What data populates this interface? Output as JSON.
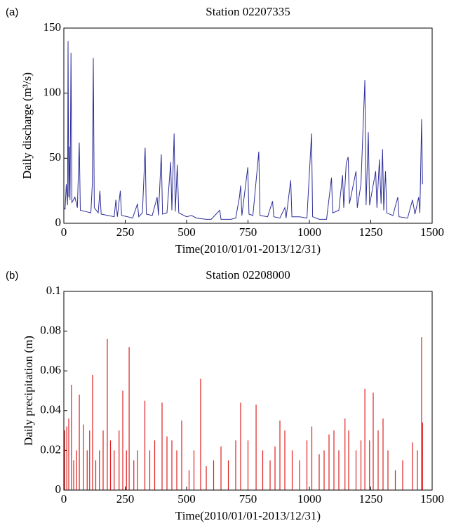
{
  "chart_data": [
    {
      "type": "line",
      "panel_label": "(a)",
      "title": "Station 02207335",
      "x_label": "Time(2010/01/01-2013/12/31)",
      "y_label": "Daily discharge (m³/s)",
      "xlim": [
        0,
        1500
      ],
      "xticks": [
        0,
        250,
        500,
        750,
        1000,
        1250,
        1500
      ],
      "ylim": [
        0,
        150
      ],
      "yticks": [
        0,
        50,
        100,
        150
      ],
      "series": [
        {
          "color": "#2e2e9a",
          "x": [
            0,
            5,
            10,
            15,
            17,
            20,
            22,
            25,
            29,
            33,
            45,
            55,
            63,
            67,
            90,
            110,
            116,
            120,
            124,
            140,
            147,
            152,
            180,
            205,
            212,
            218,
            230,
            235,
            260,
            280,
            300,
            305,
            320,
            331,
            336,
            360,
            380,
            385,
            397,
            402,
            420,
            435,
            440,
            449,
            454,
            462,
            468,
            500,
            520,
            540,
            580,
            600,
            635,
            640,
            680,
            700,
            715,
            720,
            725,
            749,
            754,
            770,
            794,
            799,
            830,
            850,
            855,
            880,
            900,
            905,
            924,
            929,
            960,
            990,
            1009,
            1013,
            1040,
            1070,
            1090,
            1095,
            1120,
            1135,
            1140,
            1150,
            1158,
            1163,
            1190,
            1195,
            1210,
            1226,
            1231,
            1240,
            1245,
            1270,
            1275,
            1285,
            1292,
            1298,
            1303,
            1310,
            1315,
            1340,
            1360,
            1365,
            1400,
            1420,
            1430,
            1445,
            1450,
            1457,
            1461
          ],
          "values": [
            12,
            11,
            30,
            14,
            140,
            20,
            59,
            18,
            131,
            16,
            20,
            12,
            62,
            10,
            9,
            8,
            30,
            127,
            12,
            8,
            25,
            7,
            6,
            5,
            18,
            5,
            25,
            6,
            5,
            4,
            15,
            5,
            8,
            58,
            7,
            6,
            20,
            6,
            53,
            7,
            8,
            47,
            10,
            69,
            9,
            45,
            8,
            5,
            6,
            4,
            3,
            3,
            10,
            3,
            3,
            4,
            20,
            29,
            6,
            43,
            7,
            6,
            55,
            6,
            5,
            17,
            5,
            4,
            12,
            4,
            33,
            5,
            5,
            4,
            69,
            5,
            3,
            3,
            35,
            8,
            10,
            37,
            12,
            46,
            51,
            15,
            40,
            12,
            30,
            110,
            14,
            70,
            14,
            40,
            12,
            49,
            15,
            57,
            10,
            40,
            8,
            6,
            20,
            5,
            4,
            18,
            7,
            20,
            8,
            80,
            30
          ]
        }
      ]
    },
    {
      "type": "stem",
      "panel_label": "(b)",
      "title": "Station 02208000",
      "x_label": "Time(2010/01/01-2013/12/31)",
      "y_label": "Daily precipitation (m)",
      "xlim": [
        0,
        1500
      ],
      "xticks": [
        0,
        250,
        500,
        750,
        1000,
        1250,
        1500
      ],
      "ylim": [
        0,
        0.1
      ],
      "yticks": [
        0,
        0.02,
        0.04,
        0.06,
        0.08,
        0.1
      ],
      "series": [
        {
          "color": "#e02020",
          "x": [
            3,
            12,
            20,
            31,
            40,
            52,
            63,
            80,
            95,
            105,
            117,
            130,
            145,
            160,
            177,
            190,
            205,
            225,
            240,
            255,
            266,
            285,
            300,
            330,
            350,
            370,
            400,
            420,
            440,
            460,
            480,
            510,
            530,
            557,
            580,
            610,
            640,
            670,
            700,
            720,
            750,
            783,
            810,
            840,
            860,
            880,
            900,
            930,
            960,
            990,
            1010,
            1040,
            1060,
            1080,
            1100,
            1120,
            1145,
            1160,
            1190,
            1210,
            1226,
            1245,
            1260,
            1280,
            1300,
            1320,
            1350,
            1380,
            1420,
            1440,
            1457,
            1461
          ],
          "values": [
            0.03,
            0.032,
            0.036,
            0.053,
            0.015,
            0.02,
            0.048,
            0.033,
            0.02,
            0.03,
            0.058,
            0.015,
            0.02,
            0.03,
            0.076,
            0.025,
            0.02,
            0.03,
            0.05,
            0.02,
            0.072,
            0.015,
            0.02,
            0.045,
            0.02,
            0.025,
            0.044,
            0.027,
            0.025,
            0.02,
            0.035,
            0.01,
            0.02,
            0.056,
            0.012,
            0.015,
            0.022,
            0.015,
            0.025,
            0.044,
            0.025,
            0.043,
            0.02,
            0.015,
            0.022,
            0.035,
            0.03,
            0.02,
            0.015,
            0.025,
            0.032,
            0.018,
            0.02,
            0.028,
            0.03,
            0.02,
            0.036,
            0.03,
            0.02,
            0.025,
            0.051,
            0.025,
            0.049,
            0.03,
            0.036,
            0.02,
            0.01,
            0.015,
            0.024,
            0.02,
            0.077,
            0.034
          ]
        }
      ]
    }
  ]
}
